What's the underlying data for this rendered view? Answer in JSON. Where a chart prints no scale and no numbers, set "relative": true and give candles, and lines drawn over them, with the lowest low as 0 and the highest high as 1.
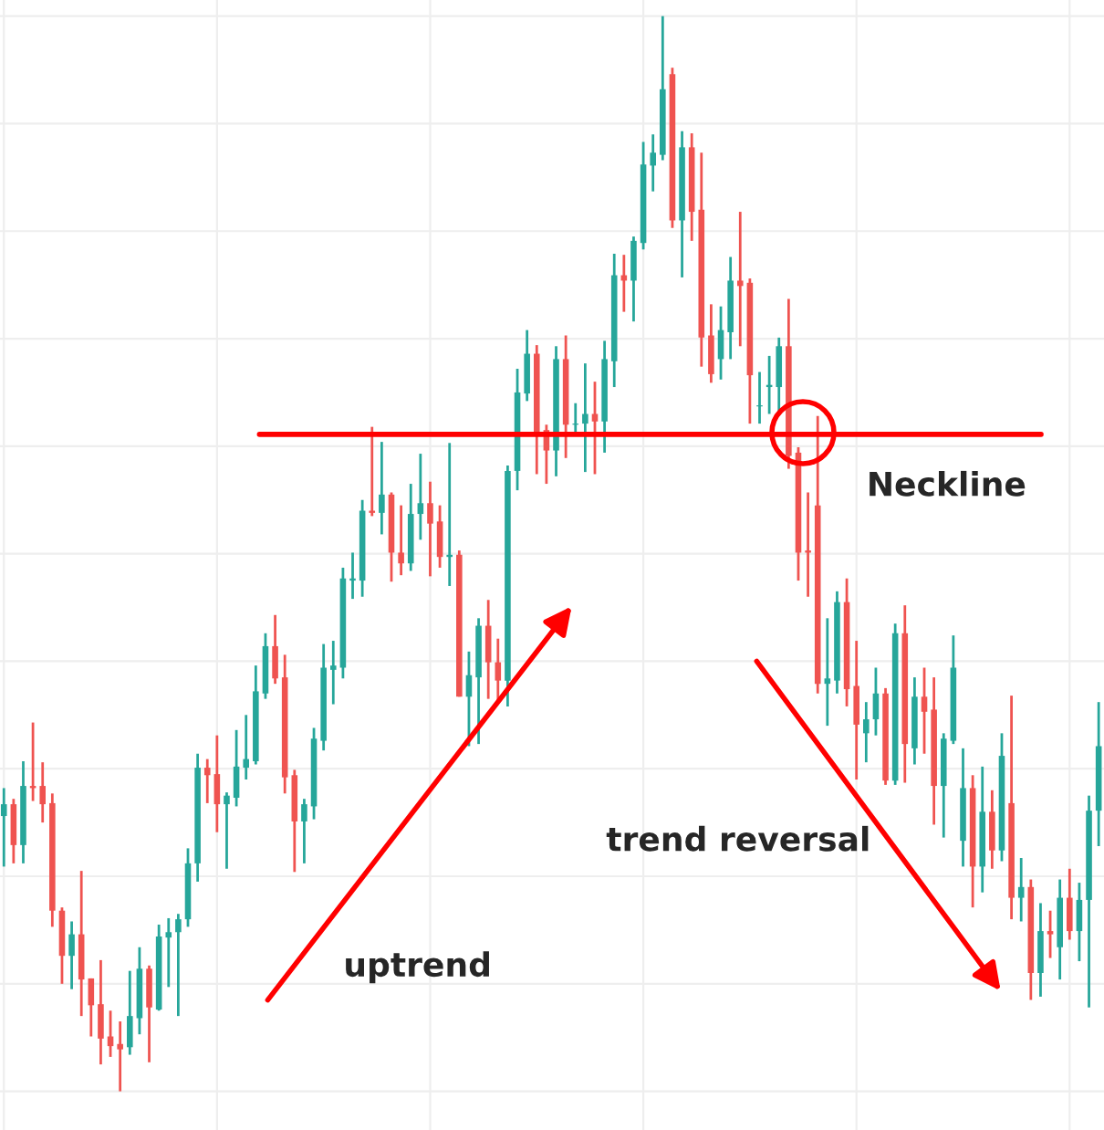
{
  "chart_data": {
    "type": "candlestick",
    "relative": true,
    "grid": true,
    "categories": [
      null,
      null,
      null,
      null,
      null,
      null,
      null,
      null,
      null,
      null,
      null,
      null,
      null,
      null,
      null,
      null,
      null,
      null,
      null,
      null,
      null,
      null,
      null,
      null,
      null,
      null,
      null,
      null,
      null,
      null,
      null,
      null,
      null,
      null,
      null,
      null,
      null,
      null,
      null,
      null,
      null,
      null,
      null,
      null,
      null,
      null,
      null,
      null,
      null,
      null,
      null,
      null,
      null,
      null,
      null,
      null,
      null,
      null,
      null,
      null,
      null,
      null,
      null,
      null,
      null,
      null,
      null,
      null,
      null,
      null,
      null,
      null,
      null,
      null,
      null,
      null,
      null,
      null,
      null,
      null,
      null,
      null,
      null,
      null,
      null,
      null,
      null,
      null,
      null,
      null,
      null,
      null,
      null,
      null,
      null,
      null,
      null,
      null,
      null,
      null,
      null,
      null,
      null,
      null,
      null,
      null,
      null,
      null,
      null,
      null,
      null,
      null,
      null,
      null
    ],
    "ohlc": [
      [
        0.256,
        0.282,
        0.209,
        0.267
      ],
      [
        0.267,
        0.272,
        0.212,
        0.229
      ],
      [
        0.229,
        0.307,
        0.212,
        0.284
      ],
      [
        0.284,
        0.343,
        0.27,
        0.282
      ],
      [
        0.284,
        0.306,
        0.25,
        0.267
      ],
      [
        0.268,
        0.277,
        0.153,
        0.168
      ],
      [
        0.168,
        0.171,
        0.1,
        0.126
      ],
      [
        0.126,
        0.158,
        0.095,
        0.146
      ],
      [
        0.146,
        0.205,
        0.07,
        0.104
      ],
      [
        0.105,
        0.105,
        0.051,
        0.08
      ],
      [
        0.081,
        0.122,
        0.025,
        0.049
      ],
      [
        0.051,
        0.075,
        0.032,
        0.042
      ],
      [
        0.044,
        0.065,
        0,
        0.039
      ],
      [
        0.041,
        0.112,
        0.034,
        0.07
      ],
      [
        0.068,
        0.134,
        0.053,
        0.114
      ],
      [
        0.114,
        0.117,
        0.027,
        0.078
      ],
      [
        0.076,
        0.155,
        0.075,
        0.144
      ],
      [
        0.143,
        0.161,
        0.097,
        0.148
      ],
      [
        0.148,
        0.165,
        0.07,
        0.16
      ],
      [
        0.16,
        0.226,
        0.153,
        0.212
      ],
      [
        0.212,
        0.314,
        0.195,
        0.301
      ],
      [
        0.301,
        0.309,
        0.268,
        0.294
      ],
      [
        0.295,
        0.331,
        0.241,
        0.267
      ],
      [
        0.267,
        0.278,
        0.207,
        0.275
      ],
      [
        0.273,
        0.336,
        0.265,
        0.302
      ],
      [
        0.301,
        0.35,
        0.29,
        0.309
      ],
      [
        0.307,
        0.396,
        0.304,
        0.372
      ],
      [
        0.37,
        0.426,
        0.365,
        0.414
      ],
      [
        0.414,
        0.443,
        0.379,
        0.384
      ],
      [
        0.385,
        0.406,
        0.277,
        0.292
      ],
      [
        0.294,
        0.299,
        0.204,
        0.251
      ],
      [
        0.251,
        0.272,
        0.212,
        0.267
      ],
      [
        0.265,
        0.338,
        0.253,
        0.328
      ],
      [
        0.326,
        0.416,
        0.317,
        0.394
      ],
      [
        0.392,
        0.419,
        0.36,
        0.396
      ],
      [
        0.394,
        0.487,
        0.384,
        0.477
      ],
      [
        0.475,
        0.501,
        0.458,
        0.477
      ],
      [
        0.475,
        0.55,
        0.46,
        0.54
      ],
      [
        0.54,
        0.618,
        0.535,
        0.538
      ],
      [
        0.538,
        0.604,
        0.518,
        0.555
      ],
      [
        0.555,
        0.557,
        0.474,
        0.501
      ],
      [
        0.501,
        0.545,
        0.48,
        0.491
      ],
      [
        0.491,
        0.565,
        0.484,
        0.537
      ],
      [
        0.537,
        0.593,
        0.513,
        0.547
      ],
      [
        0.547,
        0.567,
        0.479,
        0.528
      ],
      [
        0.53,
        0.545,
        0.487,
        0.497
      ],
      [
        0.497,
        0.603,
        0.47,
        0.499
      ],
      [
        0.499,
        0.503,
        0.367,
        0.367
      ],
      [
        0.367,
        0.409,
        0.321,
        0.387
      ],
      [
        0.385,
        0.44,
        0.323,
        0.433
      ],
      [
        0.433,
        0.457,
        0.365,
        0.399
      ],
      [
        0.399,
        0.421,
        0.362,
        0.382
      ],
      [
        0.382,
        0.582,
        0.358,
        0.577
      ],
      [
        0.577,
        0.672,
        0.559,
        0.65
      ],
      [
        0.649,
        0.708,
        0.642,
        0.686
      ],
      [
        0.686,
        0.694,
        0.574,
        0.613
      ],
      [
        0.615,
        0.62,
        0.565,
        0.596
      ],
      [
        0.596,
        0.693,
        0.572,
        0.681
      ],
      [
        0.681,
        0.703,
        0.589,
        0.62
      ],
      [
        0.62,
        0.64,
        0.61,
        0.621
      ],
      [
        0.621,
        0.677,
        0.576,
        0.63
      ],
      [
        0.63,
        0.66,
        0.574,
        0.623
      ],
      [
        0.623,
        0.698,
        0.594,
        0.681
      ],
      [
        0.679,
        0.779,
        0.655,
        0.759
      ],
      [
        0.759,
        0.778,
        0.725,
        0.754
      ],
      [
        0.754,
        0.795,
        0.716,
        0.791
      ],
      [
        0.789,
        0.883,
        0.783,
        0.862
      ],
      [
        0.861,
        0.89,
        0.837,
        0.873
      ],
      [
        0.871,
        1,
        0.866,
        0.932
      ],
      [
        0.946,
        0.952,
        0.803,
        0.81
      ],
      [
        0.81,
        0.893,
        0.757,
        0.878
      ],
      [
        0.878,
        0.891,
        0.791,
        0.818
      ],
      [
        0.82,
        0.873,
        0.674,
        0.701
      ],
      [
        0.703,
        0.732,
        0.659,
        0.667
      ],
      [
        0.681,
        0.73,
        0.662,
        0.708
      ],
      [
        0.706,
        0.776,
        0.681,
        0.754
      ],
      [
        0.754,
        0.818,
        0.693,
        0.749
      ],
      [
        0.752,
        0.756,
        0.621,
        0.666
      ],
      [
        0.637,
        0.669,
        0.621,
        0.638
      ],
      [
        0.655,
        0.684,
        0.63,
        0.657
      ],
      [
        0.655,
        0.701,
        0.63,
        0.693
      ],
      [
        0.693,
        0.737,
        0.579,
        0.591
      ],
      [
        0.594,
        0.599,
        0.475,
        0.501
      ],
      [
        0.503,
        0.557,
        0.46,
        0.501
      ],
      [
        0.545,
        0.628,
        0.37,
        0.379
      ],
      [
        0.379,
        0.44,
        0.34,
        0.384
      ],
      [
        0.382,
        0.465,
        0.37,
        0.455
      ],
      [
        0.455,
        0.477,
        0.358,
        0.374
      ],
      [
        0.377,
        0.419,
        0.29,
        0.341
      ],
      [
        0.333,
        0.362,
        0.306,
        0.346
      ],
      [
        0.346,
        0.394,
        0.331,
        0.37
      ],
      [
        0.37,
        0.375,
        0.285,
        0.289
      ],
      [
        0.289,
        0.435,
        0.285,
        0.426
      ],
      [
        0.426,
        0.452,
        0.287,
        0.323
      ],
      [
        0.319,
        0.385,
        0.304,
        0.367
      ],
      [
        0.367,
        0.394,
        0.314,
        0.353
      ],
      [
        0.355,
        0.385,
        0.248,
        0.284
      ],
      [
        0.284,
        0.333,
        0.236,
        0.328
      ],
      [
        0.326,
        0.424,
        0.323,
        0.394
      ],
      [
        0.233,
        0.319,
        0.209,
        0.282
      ],
      [
        0.282,
        0.294,
        0.171,
        0.209
      ],
      [
        0.209,
        0.302,
        0.185,
        0.26
      ],
      [
        0.26,
        0.28,
        0.207,
        0.224
      ],
      [
        0.224,
        0.333,
        0.214,
        0.312
      ],
      [
        0.268,
        0.368,
        0.16,
        0.18
      ],
      [
        0.18,
        0.217,
        0.158,
        0.19
      ],
      [
        0.19,
        0.197,
        0.085,
        0.11
      ],
      [
        0.11,
        0.175,
        0.088,
        0.149
      ],
      [
        0.149,
        0.168,
        0.124,
        0.146
      ],
      [
        0.134,
        0.197,
        0.104,
        0.18
      ],
      [
        0.18,
        0.207,
        0.141,
        0.149
      ],
      [
        0.149,
        0.194,
        0.121,
        0.178
      ],
      [
        0.178,
        0.275,
        0.078,
        0.261
      ],
      [
        0.261,
        0.362,
        0.228,
        0.321
      ]
    ],
    "ref_lines": [
      {
        "axis": "y",
        "value": 0.611,
        "label": "Neckline",
        "color": "#ff0000"
      }
    ],
    "annotations": [
      "uptrend",
      "trend reversal"
    ]
  }
}
